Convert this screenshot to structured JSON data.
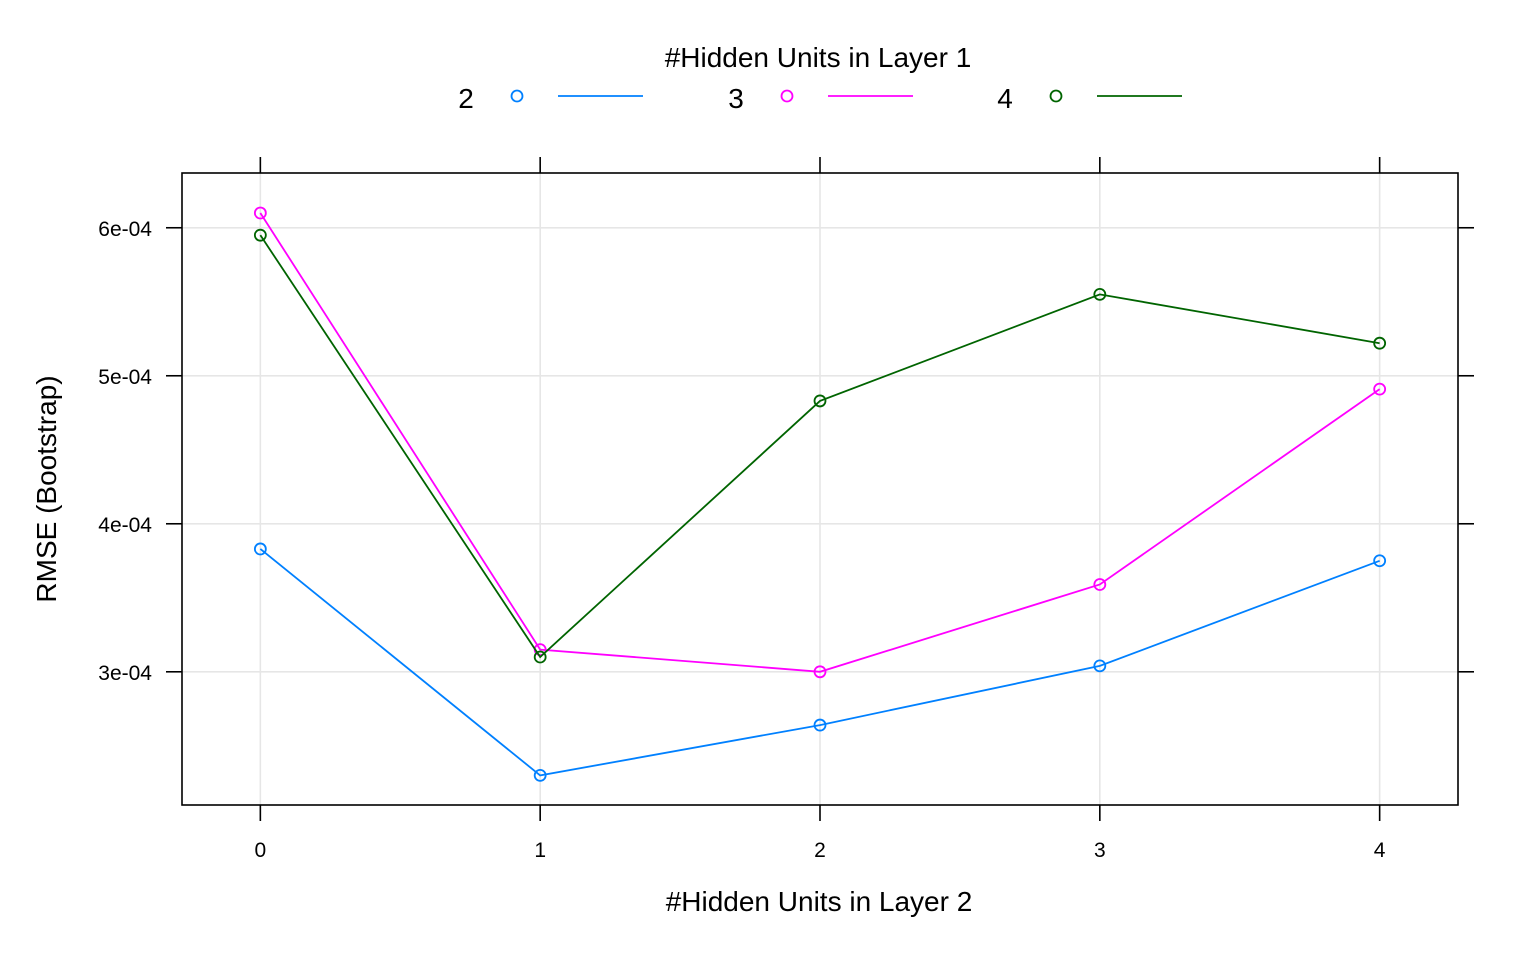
{
  "chart_data": {
    "type": "line",
    "legend_title": "#Hidden Units in Layer 1",
    "legend_placement": "top",
    "xlabel": "#Hidden Units in Layer 2",
    "ylabel": "RMSE (Bootstrap)",
    "x": [
      0,
      1,
      2,
      3,
      4
    ],
    "x_ticks": [
      "0",
      "1",
      "2",
      "3",
      "4"
    ],
    "y_ticks": [
      {
        "value": 0.0003,
        "label": "3e-04"
      },
      {
        "value": 0.0004,
        "label": "4e-04"
      },
      {
        "value": 0.0005,
        "label": "5e-04"
      },
      {
        "value": 0.0006,
        "label": "6e-04"
      }
    ],
    "xlim": [
      -0.28,
      4.28
    ],
    "ylim": [
      0.00021,
      0.000637
    ],
    "grid": true,
    "series": [
      {
        "name": "2",
        "color": "#0080ff",
        "values": [
          0.000383,
          0.00023,
          0.000264,
          0.000304,
          0.000375
        ]
      },
      {
        "name": "3",
        "color": "#ff00ff",
        "values": [
          0.00061,
          0.000315,
          0.0003,
          0.000359,
          0.000491
        ]
      },
      {
        "name": "4",
        "color": "#006400",
        "values": [
          0.000595,
          0.00031,
          0.000483,
          0.000555,
          0.000522
        ]
      }
    ]
  }
}
